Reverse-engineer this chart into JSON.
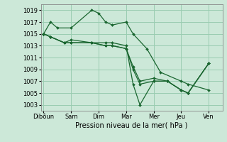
{
  "background_color": "#cce8d8",
  "grid_color": "#99ccb0",
  "line_color": "#1a6630",
  "xlabel": "Pression niveau de la mer( hPa )",
  "ylim": [
    1002,
    1020
  ],
  "yticks": [
    1003,
    1005,
    1007,
    1009,
    1011,
    1013,
    1015,
    1017,
    1019
  ],
  "x_labels": [
    "Dibôun",
    "Sam",
    "Dim",
    "Mar",
    "Mer",
    "Jeu",
    "Ven"
  ],
  "x_positions": [
    0,
    2,
    4,
    6,
    8,
    10,
    12
  ],
  "xlim": [
    -0.2,
    13.0
  ],
  "series": [
    {
      "x": [
        0,
        0.5,
        1.0,
        2.0,
        3.5,
        4.0,
        4.5,
        5.0,
        6.0,
        6.5,
        7.5,
        8.5,
        10.0,
        10.5,
        12.0
      ],
      "y": [
        1015.0,
        1017.0,
        1016.0,
        1016.0,
        1019.0,
        1018.5,
        1017.0,
        1016.5,
        1017.0,
        1015.0,
        1012.5,
        1008.5,
        1007.0,
        1006.5,
        1005.5
      ]
    },
    {
      "x": [
        0,
        0.5,
        1.5,
        2.0,
        3.5,
        4.5,
        5.0,
        6.0,
        6.5,
        7.0,
        8.0,
        9.0,
        10.0,
        10.5,
        12.0
      ],
      "y": [
        1015.0,
        1014.5,
        1013.5,
        1014.0,
        1013.5,
        1013.5,
        1013.5,
        1013.0,
        1006.5,
        1003.0,
        1007.0,
        1007.0,
        1005.5,
        1005.0,
        1010.0
      ]
    },
    {
      "x": [
        0,
        0.5,
        1.5,
        2.0,
        3.5,
        4.5,
        5.0,
        6.0,
        6.5,
        7.0,
        8.0,
        9.0,
        10.0,
        10.5,
        12.0
      ],
      "y": [
        1015.0,
        1014.5,
        1013.5,
        1013.5,
        1013.5,
        1013.0,
        1013.0,
        1012.5,
        1009.0,
        1006.5,
        1007.0,
        1007.0,
        1005.5,
        1005.0,
        1010.0
      ]
    },
    {
      "x": [
        0,
        0.5,
        1.5,
        2.0,
        3.5,
        4.5,
        5.0,
        6.0,
        6.5,
        7.0,
        8.0,
        9.0,
        10.0,
        10.5,
        12.0
      ],
      "y": [
        1015.0,
        1014.5,
        1013.5,
        1013.5,
        1013.5,
        1013.0,
        1013.0,
        1012.5,
        1009.5,
        1007.0,
        1007.5,
        1007.0,
        1005.5,
        1005.0,
        1010.0
      ]
    }
  ],
  "title_fontsize": 7,
  "tick_fontsize": 6,
  "xlabel_fontsize": 7,
  "marker_size": 2.0,
  "linewidth": 0.9
}
